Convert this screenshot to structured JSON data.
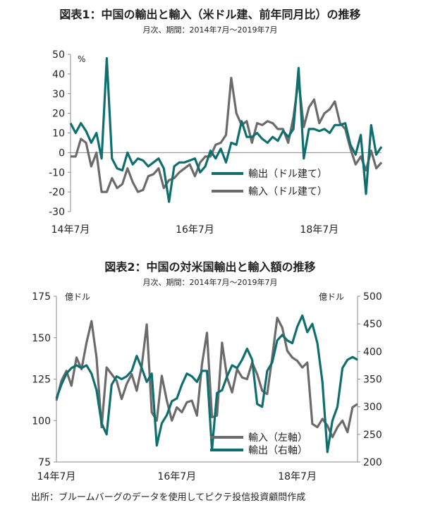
{
  "source": "出所：ブルームバーグのデータを使用してピクテ投信投資顧問作成",
  "colors": {
    "export": "#0f6e6e",
    "import": "#6b6b6b",
    "axis": "#888888"
  },
  "chart_data": [
    {
      "type": "line",
      "title": "図表1：中国の輸出と輸入（米ドル建、前年同月比）の推移",
      "subtitle": "月次、期間：2014年7月～2019年7月",
      "y_unit": "%",
      "ylim": [
        -30,
        50
      ],
      "yticks": [
        50,
        40,
        30,
        20,
        10,
        0,
        -10,
        -20,
        -30
      ],
      "xticks": [
        {
          "i": 0,
          "label": "14年7月"
        },
        {
          "i": 24,
          "label": "16年7月"
        },
        {
          "i": 48,
          "label": "18年7月"
        }
      ],
      "xlim": [
        0,
        60
      ],
      "legend": "bottom-right",
      "series": [
        {
          "name": "輸出（ドル建て）",
          "color": "#0f6e6e",
          "values": [
            15,
            10,
            15,
            11,
            5,
            10,
            -3,
            48,
            -3,
            -8,
            -9,
            0,
            -6,
            -3,
            -4,
            -7,
            -5,
            -3,
            -8,
            -25,
            -7,
            -5,
            -5,
            -4,
            -3,
            -10,
            -7,
            1,
            -3,
            2,
            -5,
            5,
            4,
            16,
            8,
            8,
            10,
            7,
            5,
            8,
            6,
            11,
            8,
            12,
            43,
            -3,
            12,
            12,
            11,
            12,
            10,
            14,
            14,
            15,
            4,
            -1,
            9,
            -21,
            14,
            -1,
            3
          ]
        },
        {
          "name": "輸入（ドル建て）",
          "color": "#6b6b6b",
          "values": [
            -2,
            -2,
            7,
            5,
            -7,
            0,
            -20,
            -20,
            -13,
            -18,
            -16,
            -8,
            -15,
            -20,
            -19,
            -12,
            -11,
            -8,
            -18,
            -14,
            -13,
            -10,
            -8,
            -6,
            -12,
            -5,
            -2,
            -2,
            4,
            5,
            9,
            38,
            20,
            14,
            16,
            5,
            15,
            14,
            16,
            15,
            12,
            12,
            5,
            18,
            37,
            13,
            23,
            27,
            15,
            20,
            22,
            26,
            15,
            12,
            2,
            -6,
            -2,
            -9,
            1,
            -8,
            -5
          ]
        }
      ]
    },
    {
      "type": "line",
      "title": "図表2：中国の対米国輸出と輸入額の推移",
      "subtitle": "月次、期間：2014年7月～2019年7月",
      "y_left_unit": "億ドル",
      "y_right_unit": "億ドル",
      "ylim_left": [
        75,
        175
      ],
      "ylim_right": [
        200,
        500
      ],
      "yticks_left": [
        175,
        150,
        125,
        100,
        75
      ],
      "yticks_right": [
        500,
        450,
        400,
        350,
        300,
        250,
        200
      ],
      "xticks": [
        {
          "i": 0,
          "label": "14年7月"
        },
        {
          "i": 24,
          "label": "16年7月"
        },
        {
          "i": 48,
          "label": "18年7月"
        }
      ],
      "xlim": [
        0,
        60
      ],
      "legend": "bottom-right",
      "series": [
        {
          "name": "輸入（左軸）",
          "axis": "left",
          "color": "#6b6b6b",
          "values": [
            112,
            124,
            130,
            121,
            138,
            131,
            147,
            160,
            138,
            96,
            132,
            128,
            124,
            113,
            122,
            128,
            118,
            133,
            158,
            105,
            100,
            127,
            112,
            100,
            108,
            105,
            111,
            112,
            103,
            134,
            153,
            102,
            103,
            147,
            126,
            117,
            131,
            126,
            125,
            135,
            128,
            118,
            116,
            138,
            162,
            156,
            142,
            138,
            136,
            132,
            135,
            98,
            96,
            101,
            97,
            90,
            96,
            100,
            93,
            108,
            110
          ]
        },
        {
          "name": "輸出（右軸）",
          "axis": "right",
          "color": "#0f6e6e",
          "values": [
            315,
            340,
            360,
            370,
            375,
            370,
            375,
            360,
            330,
            270,
            250,
            340,
            355,
            350,
            355,
            365,
            392,
            370,
            345,
            360,
            230,
            270,
            285,
            310,
            315,
            340,
            360,
            355,
            345,
            365,
            365,
            222,
            325,
            330,
            355,
            375,
            370,
            385,
            405,
            385,
            305,
            300,
            365,
            380,
            420,
            430,
            420,
            415,
            445,
            465,
            435,
            450,
            415,
            345,
            218,
            275,
            300,
            370,
            385,
            390,
            385
          ]
        }
      ]
    }
  ]
}
